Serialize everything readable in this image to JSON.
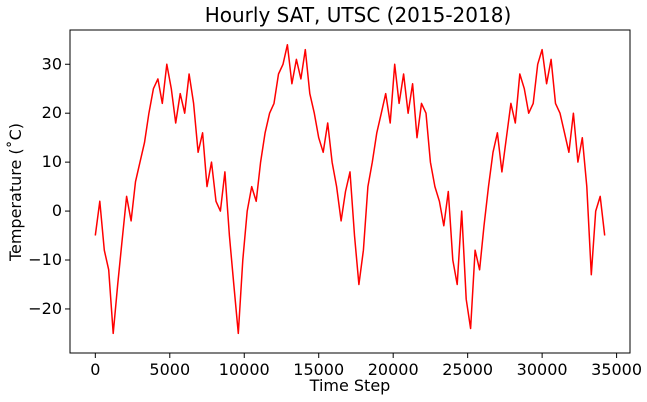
{
  "chart_data": {
    "type": "line",
    "title": "Hourly SAT, UTSC (2015-2018)",
    "xlabel": "Time Step",
    "ylabel": "Temperature (˚C)",
    "xlim": [
      -1700,
      35900
    ],
    "ylim": [
      -29,
      37
    ],
    "xticks": [
      0,
      5000,
      10000,
      15000,
      20000,
      25000,
      30000,
      35000
    ],
    "xtick_labels": [
      "0",
      "5000",
      "10000",
      "15000",
      "20000",
      "25000",
      "30000",
      "35000"
    ],
    "yticks": [
      -20,
      -10,
      0,
      10,
      20,
      30
    ],
    "ytick_labels": [
      "−20",
      "−10",
      "0",
      "10",
      "20",
      "30"
    ],
    "grid": false,
    "series": [
      {
        "color": "#ff0000",
        "x": [
          0,
          300,
          600,
          900,
          1200,
          1500,
          1800,
          2100,
          2400,
          2700,
          3000,
          3300,
          3600,
          3900,
          4200,
          4500,
          4800,
          5100,
          5400,
          5700,
          6000,
          6300,
          6600,
          6900,
          7200,
          7500,
          7800,
          8100,
          8400,
          8700,
          9000,
          9300,
          9600,
          9900,
          10200,
          10500,
          10800,
          11100,
          11400,
          11700,
          12000,
          12300,
          12600,
          12900,
          13200,
          13500,
          13800,
          14100,
          14400,
          14700,
          15000,
          15300,
          15600,
          15900,
          16200,
          16500,
          16800,
          17100,
          17400,
          17700,
          18000,
          18300,
          18600,
          18900,
          19200,
          19500,
          19800,
          20100,
          20400,
          20700,
          21000,
          21300,
          21600,
          21900,
          22200,
          22500,
          22800,
          23100,
          23400,
          23700,
          24000,
          24300,
          24600,
          24900,
          25200,
          25500,
          25800,
          26100,
          26400,
          26700,
          27000,
          27300,
          27600,
          27900,
          28200,
          28500,
          28800,
          29100,
          29400,
          29700,
          30000,
          30300,
          30600,
          30900,
          31200,
          31500,
          31800,
          32100,
          32400,
          32700,
          33000,
          33300,
          33600,
          33900,
          34200
        ],
        "y": [
          -5,
          2,
          -8,
          -12,
          -25,
          -15,
          -6,
          3,
          -2,
          6,
          10,
          14,
          20,
          25,
          27,
          22,
          30,
          25,
          18,
          24,
          20,
          28,
          22,
          12,
          16,
          5,
          10,
          2,
          0,
          8,
          -5,
          -15,
          -25,
          -10,
          0,
          5,
          2,
          10,
          16,
          20,
          22,
          28,
          30,
          34,
          26,
          31,
          27,
          33,
          24,
          20,
          15,
          12,
          18,
          10,
          5,
          -2,
          4,
          8,
          -5,
          -15,
          -8,
          5,
          10,
          16,
          20,
          24,
          18,
          30,
          22,
          28,
          20,
          26,
          15,
          22,
          20,
          10,
          5,
          2,
          -3,
          4,
          -10,
          -15,
          0,
          -18,
          -24,
          -8,
          -12,
          -3,
          5,
          12,
          16,
          8,
          15,
          22,
          18,
          28,
          25,
          20,
          22,
          30,
          33,
          26,
          31,
          22,
          20,
          16,
          12,
          20,
          10,
          15,
          5,
          -13,
          0,
          3,
          -5
        ]
      }
    ]
  }
}
